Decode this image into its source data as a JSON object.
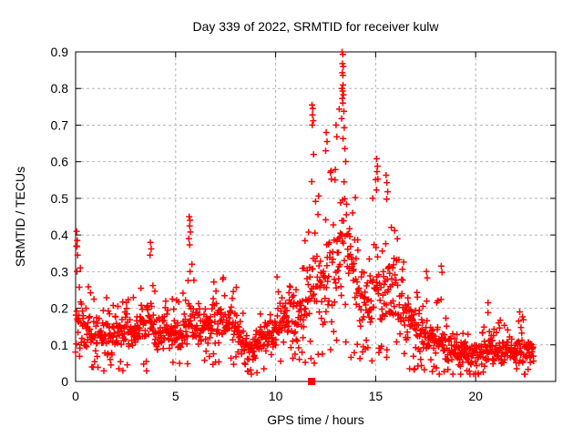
{
  "chart_data": {
    "type": "scatter",
    "title": "Day 339 of 2022, SRMTID for receiver kulw",
    "xlabel": "GPS time / hours",
    "ylabel": "SRMTID / TECUs",
    "xlim": [
      0,
      24
    ],
    "ylim": [
      0,
      0.9
    ],
    "xticks": [
      0,
      5,
      10,
      15,
      20
    ],
    "yticks": [
      0,
      0.1,
      0.2,
      0.3,
      0.4,
      0.5,
      0.6,
      0.7,
      0.8,
      0.9
    ],
    "grid": true,
    "grid_color": "#b4b4b4",
    "legend": "none",
    "marker": {
      "shape": "plus",
      "color": "#ff0000",
      "size": 7
    },
    "series": [
      {
        "name": "SRMTID",
        "color": "#ff0000",
        "n_points": 1375,
        "t_start": 0.0,
        "t_end": 22.9,
        "envelope_format": [
          "hour",
          "low",
          "typical",
          "high"
        ],
        "envelope": [
          [
            0.0,
            0.09,
            0.18,
            0.4
          ],
          [
            0.35,
            0.08,
            0.15,
            0.3
          ],
          [
            1.0,
            0.07,
            0.13,
            0.25
          ],
          [
            1.7,
            0.06,
            0.12,
            0.22
          ],
          [
            2.4,
            0.07,
            0.13,
            0.22
          ],
          [
            3.1,
            0.08,
            0.14,
            0.25
          ],
          [
            3.6,
            0.08,
            0.16,
            0.3
          ],
          [
            3.78,
            0.09,
            0.17,
            0.38
          ],
          [
            4.0,
            0.08,
            0.13,
            0.24
          ],
          [
            4.8,
            0.08,
            0.13,
            0.22
          ],
          [
            5.4,
            0.08,
            0.14,
            0.24
          ],
          [
            5.7,
            0.09,
            0.16,
            0.45
          ],
          [
            6.0,
            0.08,
            0.14,
            0.25
          ],
          [
            6.7,
            0.09,
            0.15,
            0.28
          ],
          [
            7.4,
            0.09,
            0.16,
            0.3
          ],
          [
            7.9,
            0.08,
            0.15,
            0.28
          ],
          [
            8.35,
            0.06,
            0.11,
            0.2
          ],
          [
            8.75,
            0.04,
            0.08,
            0.15
          ],
          [
            9.2,
            0.06,
            0.11,
            0.2
          ],
          [
            9.8,
            0.08,
            0.13,
            0.25
          ],
          [
            10.3,
            0.09,
            0.16,
            0.31
          ],
          [
            10.7,
            0.1,
            0.18,
            0.35
          ],
          [
            11.1,
            0.1,
            0.17,
            0.33
          ],
          [
            11.5,
            0.11,
            0.2,
            0.42
          ],
          [
            11.85,
            0.13,
            0.26,
            0.72
          ],
          [
            12.2,
            0.14,
            0.26,
            0.52
          ],
          [
            12.6,
            0.15,
            0.28,
            0.64
          ],
          [
            13.0,
            0.16,
            0.32,
            0.7
          ],
          [
            13.35,
            0.18,
            0.38,
            0.9
          ],
          [
            13.7,
            0.16,
            0.32,
            0.62
          ],
          [
            14.1,
            0.13,
            0.25,
            0.48
          ],
          [
            14.5,
            0.11,
            0.2,
            0.4
          ],
          [
            14.9,
            0.12,
            0.24,
            0.54
          ],
          [
            15.15,
            0.13,
            0.26,
            0.6
          ],
          [
            15.55,
            0.13,
            0.25,
            0.56
          ],
          [
            15.95,
            0.12,
            0.26,
            0.46
          ],
          [
            16.3,
            0.1,
            0.2,
            0.38
          ],
          [
            16.7,
            0.08,
            0.16,
            0.3
          ],
          [
            17.1,
            0.07,
            0.13,
            0.25
          ],
          [
            17.55,
            0.06,
            0.12,
            0.29
          ],
          [
            18.0,
            0.05,
            0.1,
            0.22
          ],
          [
            18.3,
            0.05,
            0.1,
            0.3
          ],
          [
            18.7,
            0.04,
            0.08,
            0.17
          ],
          [
            19.2,
            0.03,
            0.07,
            0.14
          ],
          [
            19.8,
            0.03,
            0.07,
            0.14
          ],
          [
            20.3,
            0.04,
            0.08,
            0.16
          ],
          [
            20.7,
            0.04,
            0.09,
            0.21
          ],
          [
            21.2,
            0.04,
            0.08,
            0.17
          ],
          [
            21.7,
            0.04,
            0.08,
            0.16
          ],
          [
            22.1,
            0.04,
            0.08,
            0.19
          ],
          [
            22.5,
            0.04,
            0.08,
            0.17
          ],
          [
            22.9,
            0.03,
            0.07,
            0.14
          ]
        ],
        "feature_points": [
          [
            0.05,
            0.41
          ],
          [
            0.08,
            0.385
          ],
          [
            0.04,
            0.37
          ],
          [
            0.1,
            0.345
          ],
          [
            0.07,
            0.3
          ],
          [
            3.74,
            0.38
          ],
          [
            3.78,
            0.362
          ],
          [
            3.72,
            0.345
          ],
          [
            5.68,
            0.45
          ],
          [
            5.72,
            0.44
          ],
          [
            5.7,
            0.425
          ],
          [
            5.74,
            0.408
          ],
          [
            5.66,
            0.39
          ],
          [
            5.7,
            0.373
          ],
          [
            5.72,
            0.3
          ],
          [
            11.82,
            0.755
          ],
          [
            11.86,
            0.745
          ],
          [
            11.84,
            0.728
          ],
          [
            11.88,
            0.712
          ],
          [
            11.83,
            0.7
          ],
          [
            11.9,
            0.62
          ],
          [
            12.53,
            0.68
          ],
          [
            12.57,
            0.655
          ],
          [
            12.5,
            0.63
          ],
          [
            13.02,
            0.7
          ],
          [
            13.06,
            0.668
          ],
          [
            13.32,
            0.9
          ],
          [
            13.36,
            0.893
          ],
          [
            13.34,
            0.868
          ],
          [
            13.38,
            0.86
          ],
          [
            13.33,
            0.843
          ],
          [
            13.36,
            0.836
          ],
          [
            13.31,
            0.8
          ],
          [
            13.35,
            0.793
          ],
          [
            13.39,
            0.783
          ],
          [
            13.33,
            0.773
          ],
          [
            13.36,
            0.76
          ],
          [
            13.41,
            0.738
          ],
          [
            13.3,
            0.718
          ],
          [
            13.43,
            0.693
          ],
          [
            13.37,
            0.663
          ],
          [
            13.46,
            0.636
          ],
          [
            15.05,
            0.608
          ],
          [
            15.09,
            0.588
          ],
          [
            15.07,
            0.573
          ],
          [
            15.11,
            0.553
          ],
          [
            15.04,
            0.523
          ],
          [
            15.52,
            0.563
          ],
          [
            15.56,
            0.543
          ],
          [
            15.6,
            0.518
          ],
          [
            15.55,
            0.498
          ],
          [
            17.54,
            0.3
          ],
          [
            17.58,
            0.283
          ],
          [
            18.28,
            0.315
          ],
          [
            18.32,
            0.298
          ],
          [
            20.62,
            0.215
          ],
          [
            22.2,
            0.19
          ]
        ]
      }
    ],
    "special_points": [
      {
        "shape": "filled-square",
        "x": 11.8,
        "y": 0,
        "color": "#ff0000",
        "size": 8
      }
    ]
  }
}
